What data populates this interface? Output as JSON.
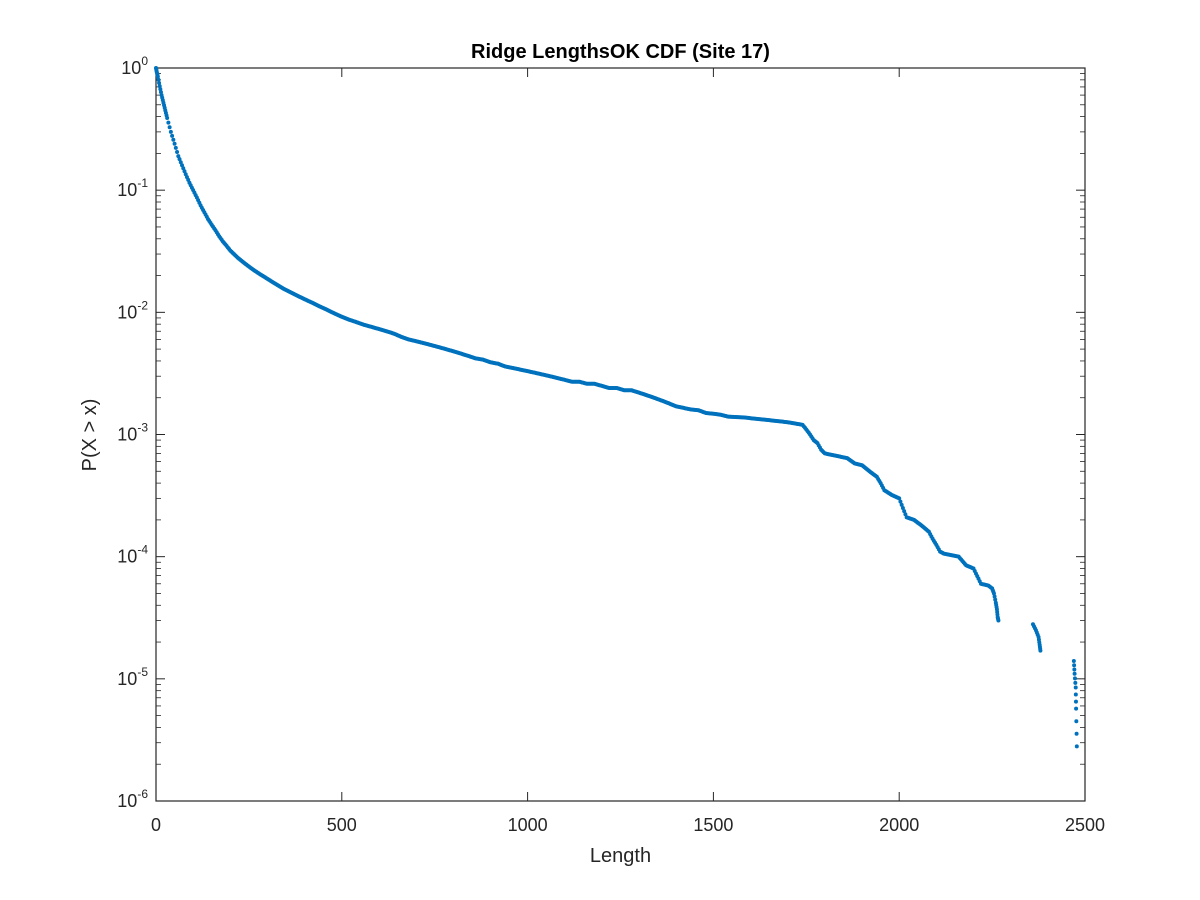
{
  "chart_data": {
    "type": "scatter",
    "title": "Ridge LengthsOK CDF (Site 17)",
    "xlabel": "Length",
    "ylabel": "P(X > x)",
    "xlim": [
      0,
      2500
    ],
    "ylim": [
      1e-06,
      1
    ],
    "yscale": "log",
    "grid": false,
    "legend": "none",
    "marker_color": "#0072BD",
    "x_ticks": [
      0,
      500,
      1000,
      1500,
      2000,
      2500
    ],
    "x_tick_labels": [
      "0",
      "500",
      "1000",
      "1500",
      "2000",
      "2500"
    ],
    "y_ticks": [
      1e-06,
      1e-05,
      0.0001,
      0.001,
      0.01,
      0.1,
      1
    ],
    "y_tick_labels": [
      {
        "base": "10",
        "exp": "-6"
      },
      {
        "base": "10",
        "exp": "-5"
      },
      {
        "base": "10",
        "exp": "-4"
      },
      {
        "base": "10",
        "exp": "-3"
      },
      {
        "base": "10",
        "exp": "-2"
      },
      {
        "base": "10",
        "exp": "-1"
      },
      {
        "base": "10",
        "exp": "0"
      }
    ],
    "series": [
      {
        "points": [
          [
            0,
            1.0
          ],
          [
            2,
            0.93
          ],
          [
            5,
            0.85
          ],
          [
            10,
            0.71
          ],
          [
            15,
            0.6
          ],
          [
            20,
            0.52
          ],
          [
            25,
            0.45
          ],
          [
            30,
            0.39
          ],
          [
            40,
            0.3
          ],
          [
            50,
            0.24
          ],
          [
            60,
            0.19
          ],
          [
            70,
            0.16
          ],
          [
            80,
            0.135
          ],
          [
            90,
            0.115
          ],
          [
            100,
            0.1
          ],
          [
            110,
            0.087
          ],
          [
            120,
            0.075
          ],
          [
            130,
            0.066
          ],
          [
            140,
            0.058
          ],
          [
            150,
            0.052
          ],
          [
            160,
            0.047
          ],
          [
            170,
            0.042
          ],
          [
            180,
            0.038
          ],
          [
            190,
            0.035
          ],
          [
            200,
            0.032
          ],
          [
            220,
            0.028
          ],
          [
            240,
            0.025
          ],
          [
            260,
            0.0225
          ],
          [
            280,
            0.0205
          ],
          [
            300,
            0.0188
          ],
          [
            320,
            0.0172
          ],
          [
            340,
            0.0158
          ],
          [
            360,
            0.0147
          ],
          [
            380,
            0.0137
          ],
          [
            400,
            0.0128
          ],
          [
            420,
            0.012
          ],
          [
            440,
            0.0112
          ],
          [
            460,
            0.0105
          ],
          [
            480,
            0.0098
          ],
          [
            500,
            0.0092
          ],
          [
            520,
            0.0087
          ],
          [
            540,
            0.0083
          ],
          [
            560,
            0.0079
          ],
          [
            580,
            0.0076
          ],
          [
            600,
            0.0073
          ],
          [
            620,
            0.007
          ],
          [
            640,
            0.0067
          ],
          [
            660,
            0.0063
          ],
          [
            680,
            0.006
          ],
          [
            700,
            0.0058
          ],
          [
            720,
            0.0056
          ],
          [
            740,
            0.0054
          ],
          [
            760,
            0.0052
          ],
          [
            780,
            0.005
          ],
          [
            800,
            0.0048
          ],
          [
            820,
            0.0046
          ],
          [
            840,
            0.0044
          ],
          [
            860,
            0.0042
          ],
          [
            880,
            0.0041
          ],
          [
            900,
            0.0039
          ],
          [
            920,
            0.0038
          ],
          [
            940,
            0.0036
          ],
          [
            960,
            0.0035
          ],
          [
            980,
            0.0034
          ],
          [
            1000,
            0.0033
          ],
          [
            1020,
            0.0032
          ],
          [
            1040,
            0.0031
          ],
          [
            1060,
            0.003
          ],
          [
            1080,
            0.0029
          ],
          [
            1100,
            0.0028
          ],
          [
            1120,
            0.0027
          ],
          [
            1140,
            0.0027
          ],
          [
            1160,
            0.0026
          ],
          [
            1180,
            0.0026
          ],
          [
            1200,
            0.0025
          ],
          [
            1220,
            0.0024
          ],
          [
            1240,
            0.0024
          ],
          [
            1260,
            0.0023
          ],
          [
            1280,
            0.0023
          ],
          [
            1300,
            0.0022
          ],
          [
            1320,
            0.0021
          ],
          [
            1340,
            0.002
          ],
          [
            1360,
            0.0019
          ],
          [
            1380,
            0.0018
          ],
          [
            1400,
            0.0017
          ],
          [
            1420,
            0.00165
          ],
          [
            1440,
            0.0016
          ],
          [
            1460,
            0.00158
          ],
          [
            1480,
            0.0015
          ],
          [
            1500,
            0.00148
          ],
          [
            1520,
            0.00145
          ],
          [
            1540,
            0.0014
          ],
          [
            1560,
            0.00139
          ],
          [
            1580,
            0.00138
          ],
          [
            1600,
            0.00136
          ],
          [
            1620,
            0.00134
          ],
          [
            1640,
            0.00132
          ],
          [
            1660,
            0.0013
          ],
          [
            1680,
            0.00128
          ],
          [
            1700,
            0.00126
          ],
          [
            1720,
            0.00123
          ],
          [
            1740,
            0.0012
          ],
          [
            1750,
            0.0011
          ],
          [
            1760,
            0.001
          ],
          [
            1770,
            0.0009
          ],
          [
            1780,
            0.00085
          ],
          [
            1790,
            0.00075
          ],
          [
            1800,
            0.0007
          ],
          [
            1820,
            0.00068
          ],
          [
            1840,
            0.00066
          ],
          [
            1860,
            0.00064
          ],
          [
            1880,
            0.00058
          ],
          [
            1900,
            0.00056
          ],
          [
            1920,
            0.0005
          ],
          [
            1940,
            0.00045
          ],
          [
            1950,
            0.0004
          ],
          [
            1960,
            0.00035
          ],
          [
            1980,
            0.00032
          ],
          [
            2000,
            0.0003
          ],
          [
            2010,
            0.00025
          ],
          [
            2020,
            0.00021
          ],
          [
            2040,
            0.0002
          ],
          [
            2060,
            0.00018
          ],
          [
            2080,
            0.00016
          ],
          [
            2090,
            0.00014
          ],
          [
            2100,
            0.000125
          ],
          [
            2110,
            0.00011
          ],
          [
            2120,
            0.000106
          ],
          [
            2140,
            0.000103
          ],
          [
            2160,
            0.0001
          ],
          [
            2180,
            8.5e-05
          ],
          [
            2200,
            8e-05
          ],
          [
            2220,
            6e-05
          ],
          [
            2240,
            5.8e-05
          ],
          [
            2250,
            5.5e-05
          ],
          [
            2255,
            5e-05
          ],
          [
            2260,
            4.2e-05
          ],
          [
            2263,
            3.7e-05
          ],
          [
            2265,
            3.2e-05
          ],
          [
            2267,
            3e-05
          ],
          [
            2360,
            2.8e-05
          ],
          [
            2368,
            2.5e-05
          ],
          [
            2375,
            2.2e-05
          ],
          [
            2378,
            1.9e-05
          ],
          [
            2380,
            1.7e-05
          ],
          [
            2470,
            1.4e-05
          ],
          [
            2472,
            1.1e-05
          ],
          [
            2475,
            8.5e-06
          ],
          [
            2476,
            5.7e-06
          ],
          [
            2478,
            2.8e-06
          ]
        ]
      }
    ]
  }
}
